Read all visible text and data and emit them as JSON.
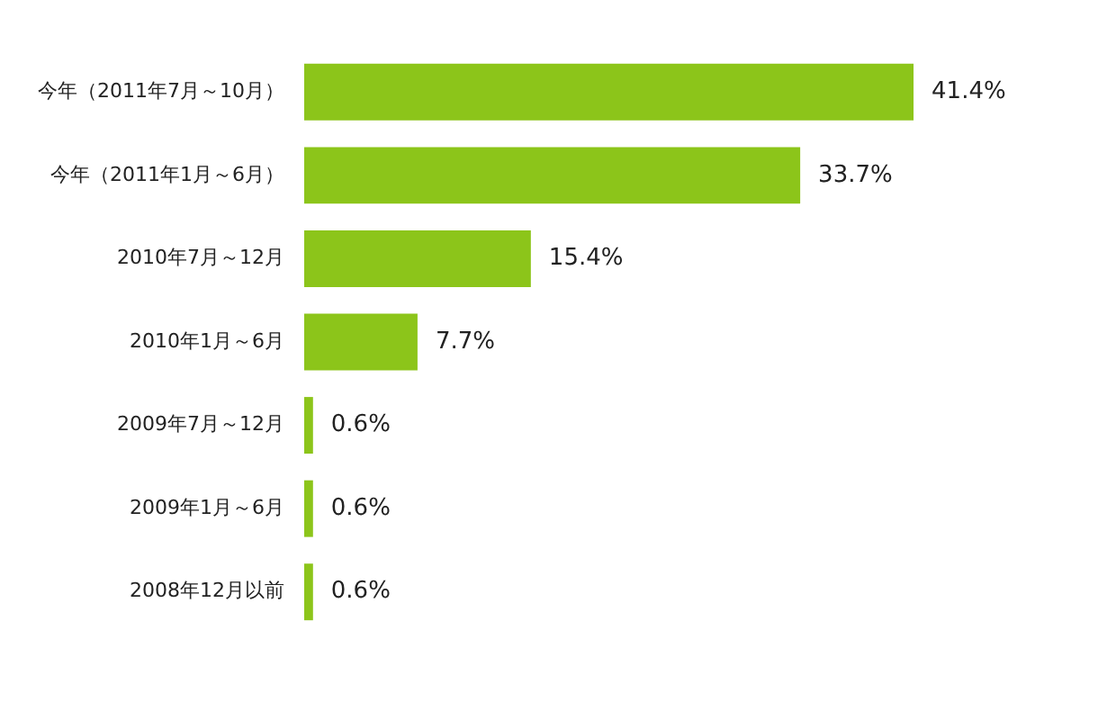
{
  "chart_data": {
    "type": "bar",
    "orientation": "horizontal",
    "categories": [
      "今年（2011年7月～10月）",
      "今年（2011年1月～6月）",
      "2010年7月～12月",
      "2010年1月～6月",
      "2009年7月～12月",
      "2009年1月～6月",
      "2008年12月以前"
    ],
    "values": [
      41.4,
      33.7,
      15.4,
      7.7,
      0.6,
      0.6,
      0.6
    ],
    "value_labels": [
      "41.4%",
      "33.7%",
      "15.4%",
      "7.7%",
      "0.6%",
      "0.6%",
      "0.6%"
    ],
    "color": "#8cc51a"
  }
}
